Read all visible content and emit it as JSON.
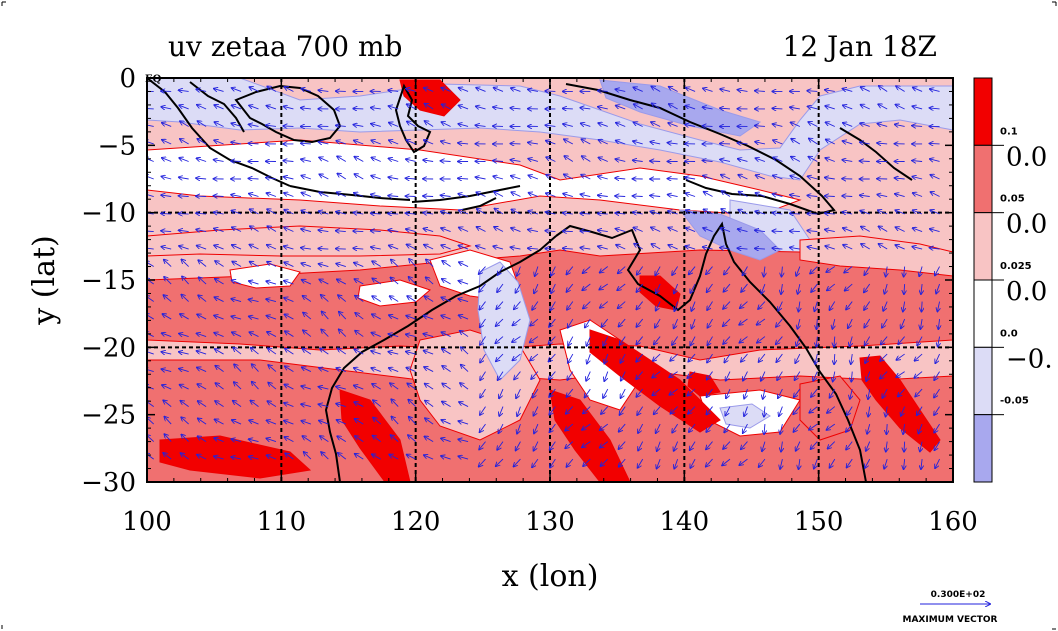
{
  "chart_data": {
    "type": "heatmap",
    "title_left": "uv zetaa 700 mb",
    "title_right": "12 Jan 18Z",
    "xlabel": "x (lon)",
    "ylabel": "y (lat)",
    "xlim": [
      100,
      160
    ],
    "ylim": [
      -30,
      0
    ],
    "xticks": [
      100,
      110,
      120,
      130,
      140,
      150,
      160
    ],
    "yticks": [
      0,
      -5,
      -10,
      -15,
      -20,
      -25,
      -30
    ],
    "ytick_labels": [
      "0",
      "−5",
      "−10",
      "−15",
      "−20",
      "−25",
      "−30"
    ],
    "eq_label": "EQ",
    "grid": true,
    "grid_lines": {
      "lon": [
        110,
        120,
        130,
        140,
        150
      ],
      "lat": [
        -10,
        -20
      ]
    },
    "colorbar": {
      "levels": [
        "0.1",
        "0.05",
        "0.025",
        "0.0",
        "-0.05"
      ],
      "side_labels": [
        "0.0",
        "0.0",
        "0.0",
        "−0."
      ],
      "bins": [
        {
          "range": "> 0.1",
          "color": "#f20000"
        },
        {
          "range": "0.05 – 0.1",
          "color": "#f07070"
        },
        {
          "range": "0.025 – 0.05",
          "color": "#f8c4c4"
        },
        {
          "range": "0.0 – 0.025",
          "color": "#ffffff"
        },
        {
          "range": "-0.05 – 0.0",
          "color": "#dcdcf6"
        },
        {
          "range": "< -0.05",
          "color": "#a8a8ee"
        }
      ]
    },
    "vector_scale": {
      "value": "0.300E+02",
      "label": "MAXIMUM VECTOR"
    },
    "colors": {
      "vector": "#2222dd",
      "coast": "#000000",
      "contour": "#ee0000"
    }
  }
}
